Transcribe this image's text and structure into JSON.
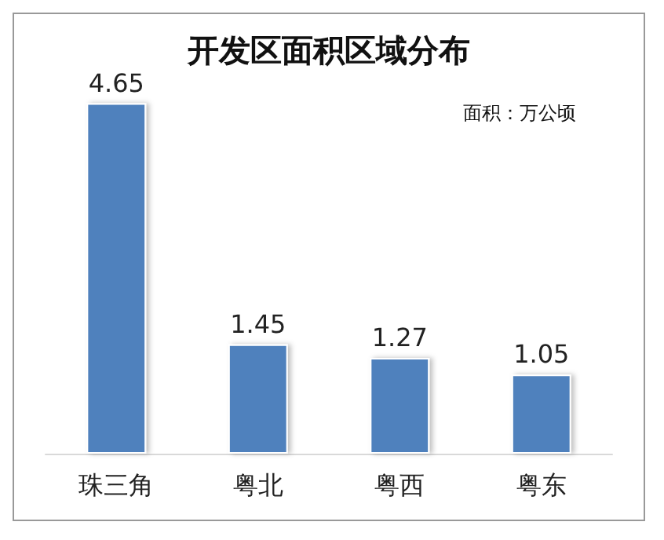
{
  "chart_data": {
    "type": "bar",
    "title": "开发区面积区域分布",
    "annotations": [
      "面积：万公顷"
    ],
    "categories": [
      "珠三角",
      "粤北",
      "粤西",
      "粤东"
    ],
    "values": [
      4.65,
      1.45,
      1.27,
      1.05
    ],
    "color": "#4f81bd",
    "data_labels": true
  }
}
